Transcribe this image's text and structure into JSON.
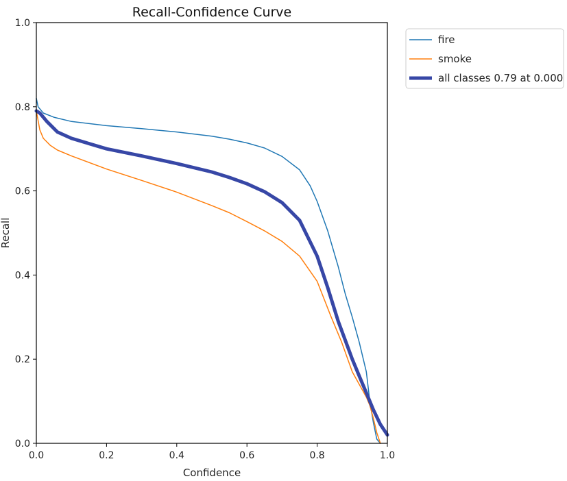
{
  "chart_data": {
    "type": "line",
    "title": "Recall-Confidence Curve",
    "xlabel": "Confidence",
    "ylabel": "Recall",
    "xlim": [
      0.0,
      1.0
    ],
    "ylim": [
      0.0,
      1.0
    ],
    "x_ticks": [
      "0.0",
      "0.2",
      "0.4",
      "0.6",
      "0.8",
      "1.0"
    ],
    "y_ticks": [
      "0.0",
      "0.2",
      "0.4",
      "0.6",
      "0.8",
      "1.0"
    ],
    "grid": false,
    "legend_position": "outside-top-right",
    "series": [
      {
        "name": "fire",
        "color": "#1f77b4",
        "width": "thin",
        "x": [
          0.0,
          0.005,
          0.02,
          0.05,
          0.1,
          0.2,
          0.3,
          0.4,
          0.5,
          0.55,
          0.6,
          0.65,
          0.7,
          0.75,
          0.78,
          0.8,
          0.83,
          0.86,
          0.88,
          0.9,
          0.92,
          0.94,
          0.95,
          0.96,
          0.97,
          0.98
        ],
        "y": [
          0.82,
          0.8,
          0.785,
          0.775,
          0.765,
          0.755,
          0.748,
          0.74,
          0.73,
          0.723,
          0.714,
          0.702,
          0.682,
          0.65,
          0.612,
          0.575,
          0.505,
          0.42,
          0.355,
          0.3,
          0.24,
          0.17,
          0.1,
          0.05,
          0.01,
          0.0
        ]
      },
      {
        "name": "smoke",
        "color": "#ff7f0e",
        "width": "thin",
        "x": [
          0.0,
          0.01,
          0.02,
          0.04,
          0.06,
          0.1,
          0.2,
          0.3,
          0.4,
          0.5,
          0.55,
          0.6,
          0.65,
          0.7,
          0.75,
          0.8,
          0.84,
          0.87,
          0.9,
          0.92,
          0.94,
          0.95,
          0.96,
          0.97,
          0.98
        ],
        "y": [
          0.79,
          0.745,
          0.725,
          0.708,
          0.697,
          0.683,
          0.652,
          0.625,
          0.597,
          0.565,
          0.548,
          0.527,
          0.505,
          0.48,
          0.445,
          0.385,
          0.3,
          0.24,
          0.17,
          0.14,
          0.11,
          0.09,
          0.06,
          0.025,
          0.0
        ]
      },
      {
        "name": "all classes 0.79 at 0.000",
        "color": "#3747a6",
        "width": "thick",
        "x": [
          0.0,
          0.01,
          0.03,
          0.06,
          0.1,
          0.2,
          0.3,
          0.4,
          0.5,
          0.55,
          0.6,
          0.65,
          0.7,
          0.75,
          0.8,
          0.83,
          0.86,
          0.88,
          0.9,
          0.92,
          0.94,
          0.96,
          0.98,
          1.0
        ],
        "y": [
          0.79,
          0.785,
          0.765,
          0.74,
          0.725,
          0.7,
          0.683,
          0.665,
          0.645,
          0.632,
          0.617,
          0.598,
          0.572,
          0.53,
          0.445,
          0.37,
          0.29,
          0.245,
          0.2,
          0.16,
          0.12,
          0.08,
          0.045,
          0.02
        ]
      }
    ]
  }
}
